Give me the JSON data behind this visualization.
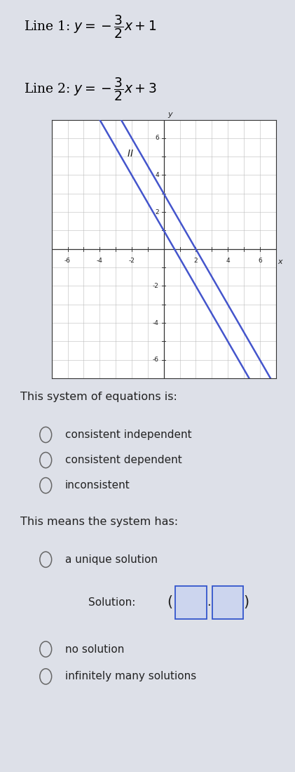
{
  "line1_slope": -1.5,
  "line1_intercept": 1,
  "line2_slope": -1.5,
  "line2_intercept": 3,
  "line_color": "#4455cc",
  "line_width": 1.8,
  "graph_xlim": [
    -7,
    7
  ],
  "graph_ylim": [
    -7,
    7
  ],
  "xticks": [
    -6,
    -4,
    -2,
    2,
    4,
    6
  ],
  "yticks": [
    -6,
    -4,
    -2,
    2,
    4,
    6
  ],
  "panel_bg": "#dde0e8",
  "graph_bg": "#dde0e8",
  "inner_bg": "#ffffff",
  "system_label": "This system of equations is:",
  "options_system": [
    "consistent independent",
    "consistent dependent",
    "inconsistent"
  ],
  "system_means_label": "This means the system has:",
  "solution_label": "Solution:",
  "options_means_before": [
    "a unique solution"
  ],
  "options_means_after": [
    "no solution",
    "infinitely many solutions"
  ],
  "circle_color": "#666666",
  "text_color": "#222222",
  "box_edge_color": "#3355cc",
  "box_face_color": "#ccd5ee"
}
